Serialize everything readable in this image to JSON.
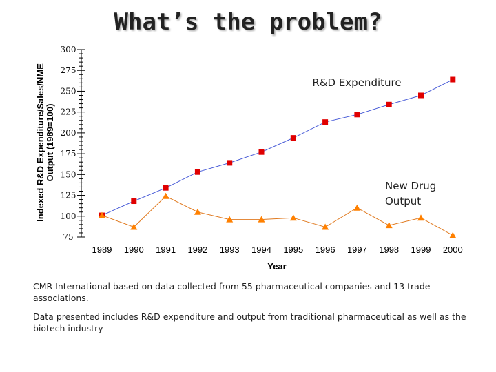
{
  "slide": {
    "title": "What’s the problem?",
    "notes": [
      "CMR International based on data collected from 55 pharmaceutical companies and 13 trade associations.",
      "Data presented includes R&D expenditure and output from traditional pharmaceutical as well as the biotech industry"
    ]
  },
  "chart_data": {
    "type": "line",
    "title": "",
    "xlabel": "Year",
    "ylabel": "Indexed R&D Expenditure/Sales/NME Output (1989=100)",
    "ylim": [
      75,
      300
    ],
    "yticks": [
      75,
      100,
      125,
      150,
      175,
      200,
      225,
      250,
      275,
      300
    ],
    "categories": [
      "1989",
      "1990",
      "1991",
      "1992",
      "1993",
      "1994",
      "1995",
      "1996",
      "1997",
      "1998",
      "1999",
      "2000"
    ],
    "grid": false,
    "legend": "inline labels",
    "series": [
      {
        "name": "R&D Expenditure",
        "marker": "square",
        "color": "#e00000",
        "line_color": "#4a5dd8",
        "values": [
          101,
          118,
          134,
          153,
          164,
          177,
          194,
          213,
          222,
          234,
          245,
          264
        ]
      },
      {
        "name": "New Drug Output",
        "marker": "triangle",
        "color": "#ff8000",
        "line_color": "#e07a20",
        "values": [
          101,
          87,
          124,
          105,
          96,
          96,
          98,
          87,
          110,
          89,
          98,
          77
        ]
      }
    ]
  }
}
